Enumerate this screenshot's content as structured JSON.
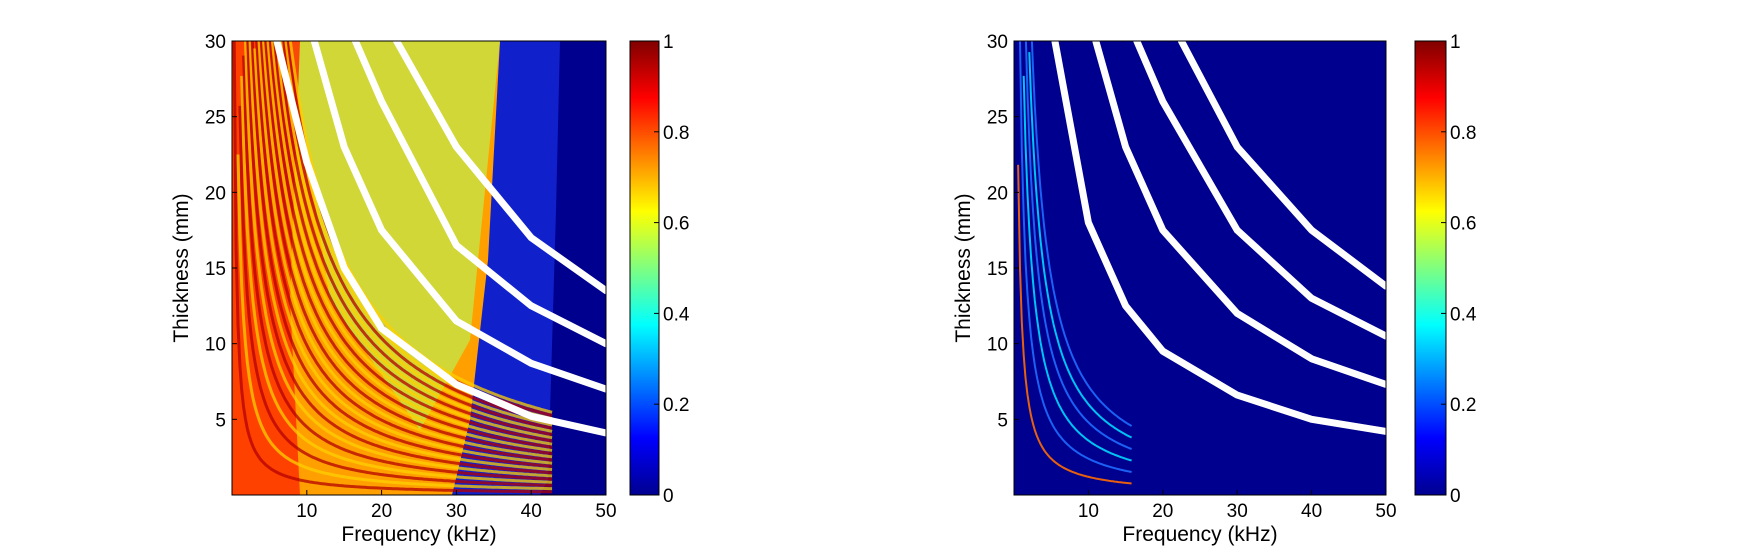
{
  "chart_data": [
    {
      "type": "heatmap",
      "title": "",
      "xlabel": "Frequency (kHz)",
      "ylabel": "Thickness (mm)",
      "xlim": [
        0,
        50
      ],
      "ylim": [
        0,
        30
      ],
      "xticks": [
        10,
        20,
        30,
        40,
        50
      ],
      "yticks": [
        5,
        10,
        15,
        20,
        25,
        30
      ],
      "colormap": "jet",
      "colorbar": {
        "range": [
          0,
          1
        ],
        "ticks": [
          "0",
          "0.2",
          "0.4",
          "0.6",
          "0.8",
          "1"
        ]
      },
      "cutoff_curves": [
        [
          [
            6.0,
            30
          ],
          [
            10,
            22
          ],
          [
            15,
            15
          ],
          [
            20,
            11
          ],
          [
            30,
            7.3
          ],
          [
            40,
            5.2
          ],
          [
            50,
            4.1
          ]
        ],
        [
          [
            11.0,
            30
          ],
          [
            15,
            23
          ],
          [
            20,
            17.5
          ],
          [
            30,
            11.5
          ],
          [
            40,
            8.7
          ],
          [
            50,
            7.0
          ]
        ],
        [
          [
            16.5,
            30
          ],
          [
            20,
            26
          ],
          [
            30,
            16.5
          ],
          [
            40,
            12.5
          ],
          [
            50,
            10.0
          ]
        ],
        [
          [
            22.0,
            30
          ],
          [
            30,
            23
          ],
          [
            40,
            17.0
          ],
          [
            50,
            13.5
          ]
        ]
      ],
      "high_response_region": {
        "max_frequency_khz": 43,
        "pattern": "fringes between cutoff curves"
      }
    },
    {
      "type": "heatmap",
      "title": "",
      "xlabel": "Frequency (kHz)",
      "ylabel": "Thickness (mm)",
      "xlim": [
        0,
        50
      ],
      "ylim": [
        0,
        30
      ],
      "xticks": [
        10,
        20,
        30,
        40,
        50
      ],
      "yticks": [
        5,
        10,
        15,
        20,
        25,
        30
      ],
      "colormap": "jet",
      "colorbar": {
        "range": [
          0,
          1
        ],
        "ticks": [
          "0",
          "0.2",
          "0.4",
          "0.6",
          "0.8",
          "1"
        ]
      },
      "cutoff_curves": [
        [
          [
            5.5,
            30
          ],
          [
            10,
            18
          ],
          [
            15,
            12.5
          ],
          [
            20,
            9.5
          ],
          [
            30,
            6.6
          ],
          [
            40,
            5.0
          ],
          [
            50,
            4.2
          ]
        ],
        [
          [
            11.0,
            30
          ],
          [
            15,
            23
          ],
          [
            20,
            17.5
          ],
          [
            30,
            12.0
          ],
          [
            40,
            9.0
          ],
          [
            50,
            7.3
          ]
        ],
        [
          [
            16.5,
            30
          ],
          [
            20,
            26
          ],
          [
            30,
            17.5
          ],
          [
            40,
            13.0
          ],
          [
            50,
            10.5
          ]
        ],
        [
          [
            22.5,
            30
          ],
          [
            30,
            23
          ],
          [
            40,
            17.5
          ],
          [
            50,
            13.8
          ]
        ]
      ],
      "high_response_region": {
        "max_frequency_khz": 16,
        "pattern": "thin bright ridges near low frequency"
      }
    }
  ]
}
